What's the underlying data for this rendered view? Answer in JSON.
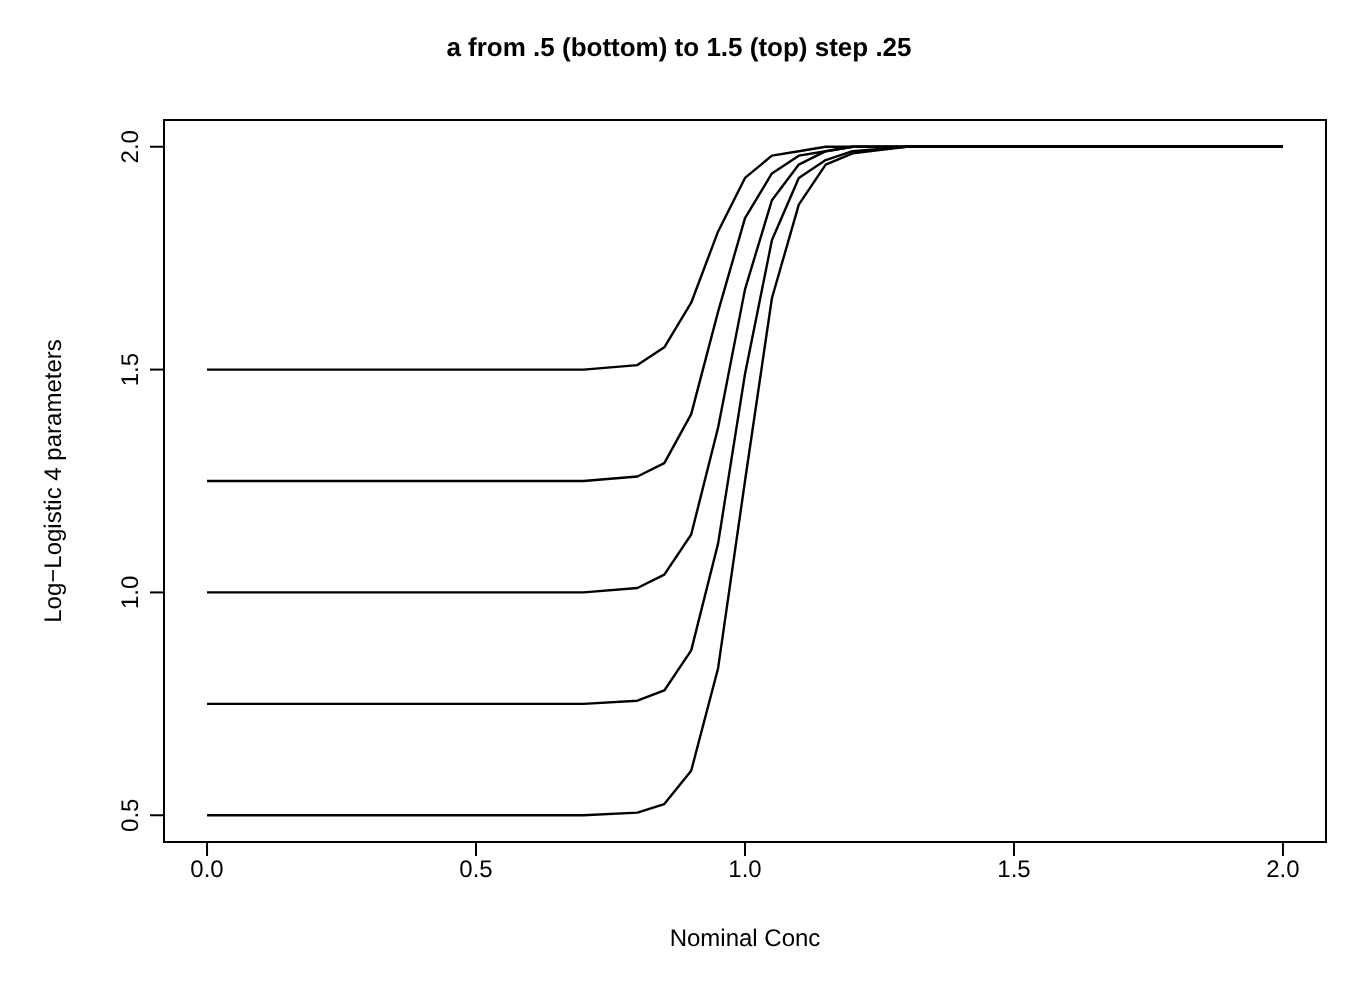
{
  "chart_data": {
    "type": "line",
    "title": "a from .5 (bottom) to 1.5 (top) step .25",
    "xlabel": "Nominal Conc",
    "ylabel": "Log−Logistic 4 parameters",
    "x": [
      0,
      0.5,
      0.7,
      0.8,
      0.85,
      0.9,
      0.95,
      1.0,
      1.05,
      1.1,
      1.15,
      1.2,
      1.3,
      1.5,
      2.0
    ],
    "series": [
      {
        "color": "#000000",
        "values": [
          0.5,
          0.5,
          0.5,
          0.506,
          0.525,
          0.6,
          0.83,
          1.25,
          1.66,
          1.87,
          1.96,
          1.985,
          2.0,
          2.0,
          2.0
        ]
      },
      {
        "color": "#000000",
        "values": [
          0.75,
          0.75,
          0.75,
          0.757,
          0.78,
          0.87,
          1.11,
          1.49,
          1.79,
          1.93,
          1.97,
          1.99,
          2.0,
          2.0,
          2.0
        ]
      },
      {
        "color": "#000000",
        "values": [
          1.0,
          1.0,
          1.0,
          1.01,
          1.04,
          1.13,
          1.37,
          1.68,
          1.88,
          1.96,
          1.99,
          2.0,
          2.0,
          2.0,
          2.0
        ]
      },
      {
        "color": "#000000",
        "values": [
          1.25,
          1.25,
          1.25,
          1.26,
          1.29,
          1.4,
          1.63,
          1.84,
          1.94,
          1.98,
          1.99,
          2.0,
          2.0,
          2.0,
          2.0
        ]
      },
      {
        "color": "#000000",
        "values": [
          1.5,
          1.5,
          1.5,
          1.51,
          1.55,
          1.65,
          1.81,
          1.93,
          1.98,
          1.99,
          2.0,
          2.0,
          2.0,
          2.0,
          2.0
        ]
      }
    ],
    "xlim": [
      -0.08,
      2.08
    ],
    "ylim": [
      0.44,
      2.06
    ],
    "xticks": [
      {
        "value": 0,
        "label": "0.0"
      },
      {
        "value": 0.5,
        "label": "0.5"
      },
      {
        "value": 1,
        "label": "1.0"
      },
      {
        "value": 1.5,
        "label": "1.5"
      },
      {
        "value": 2,
        "label": "2.0"
      }
    ],
    "yticks": [
      {
        "value": 0.5,
        "label": "0.5"
      },
      {
        "value": 1,
        "label": "1.0"
      },
      {
        "value": 1.5,
        "label": "1.5"
      },
      {
        "value": 2,
        "label": "2.0"
      }
    ],
    "grid": false,
    "legend": false,
    "marker": "none",
    "line_style": "solid"
  }
}
